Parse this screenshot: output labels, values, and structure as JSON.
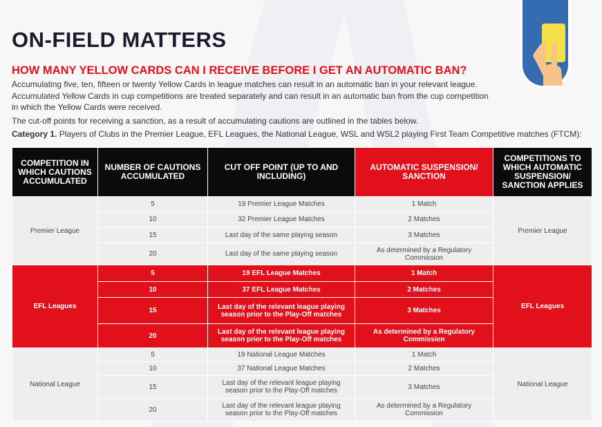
{
  "title": "ON-FIELD MATTERS",
  "question": "HOW MANY YELLOW CARDS CAN I RECEIVE BEFORE I GET AN AUTOMATIC BAN?",
  "para1": "Accumulating five, ten, fifteen or twenty Yellow Cards in league matches can result in an automatic ban in your relevant league. Accumulated Yellow Cards in cup competitions are treated separately and can result in an automatic ban from the cup competition in which the Yellow Cards were received.",
  "para2": "The cut-off points for receiving a sanction, as a result of accumulating cautions are outlined in the tables below.",
  "category_label": "Category 1.",
  "category_text": " Players of Clubs in the Premier League, EFL Leagues, the National League, WSL and WSL2 playing First Team Competitive matches (FTCM):",
  "icon": "hand-holding-yellow-card",
  "colors": {
    "accent_red": "#e2101b",
    "header_black": "#0b0b0b",
    "badge_blue": "#356cb1",
    "card_yellow": "#f2df4a"
  },
  "table": {
    "headers": [
      "COMPETITION IN WHICH CAUTIONS ACCUMULATED",
      "NUMBER OF CAUTIONS ACCUMULATED",
      "CUT OFF POINT (UP TO AND INCLUDING)",
      "AUTOMATIC SUSPENSION/ SANCTION",
      "COMPETITIONS TO WHICH AUTOMATIC SUSPENSION/ SANCTION APPLIES"
    ],
    "groups": [
      {
        "competition": "Premier League",
        "applies": "Premier League",
        "rows": [
          {
            "cautions": "5",
            "cutoff": "19 Premier League Matches",
            "sanction": "1 Match"
          },
          {
            "cautions": "10",
            "cutoff": "32 Premier League Matches",
            "sanction": "2 Matches"
          },
          {
            "cautions": "15",
            "cutoff": "Last day of the same playing season",
            "sanction": "3 Matches"
          },
          {
            "cautions": "20",
            "cutoff": "Last day of the same playing season",
            "sanction": "As determined by a Regulatory Commission"
          }
        ]
      },
      {
        "competition": "EFL Leagues",
        "applies": "EFL Leagues",
        "rows": [
          {
            "cautions": "5",
            "cutoff": "19 EFL League Matches",
            "sanction": "1 Match"
          },
          {
            "cautions": "10",
            "cutoff": "37 EFL League Matches",
            "sanction": "2 Matches"
          },
          {
            "cautions": "15",
            "cutoff": "Last day of the relevant league playing season prior to the Play-Off matches",
            "sanction": "3 Matches"
          },
          {
            "cautions": "20",
            "cutoff": "Last day of the relevant league playing season prior to the Play-Off matches",
            "sanction": "As determined by a Regulatory Commission"
          }
        ]
      },
      {
        "competition": "National League",
        "applies": "National League",
        "rows": [
          {
            "cautions": "5",
            "cutoff": "19 National League Matches",
            "sanction": "1 Match"
          },
          {
            "cautions": "10",
            "cutoff": "37 National League Matches",
            "sanction": "2 Matches"
          },
          {
            "cautions": "15",
            "cutoff": "Last day of the relevant league playing season prior to the Play-Off matches",
            "sanction": "3 Matches"
          },
          {
            "cautions": "20",
            "cutoff": "Last day of the relevant league playing season prior to the Play-Off matches",
            "sanction": "As determined by a Regulatory Commission"
          }
        ]
      }
    ]
  }
}
